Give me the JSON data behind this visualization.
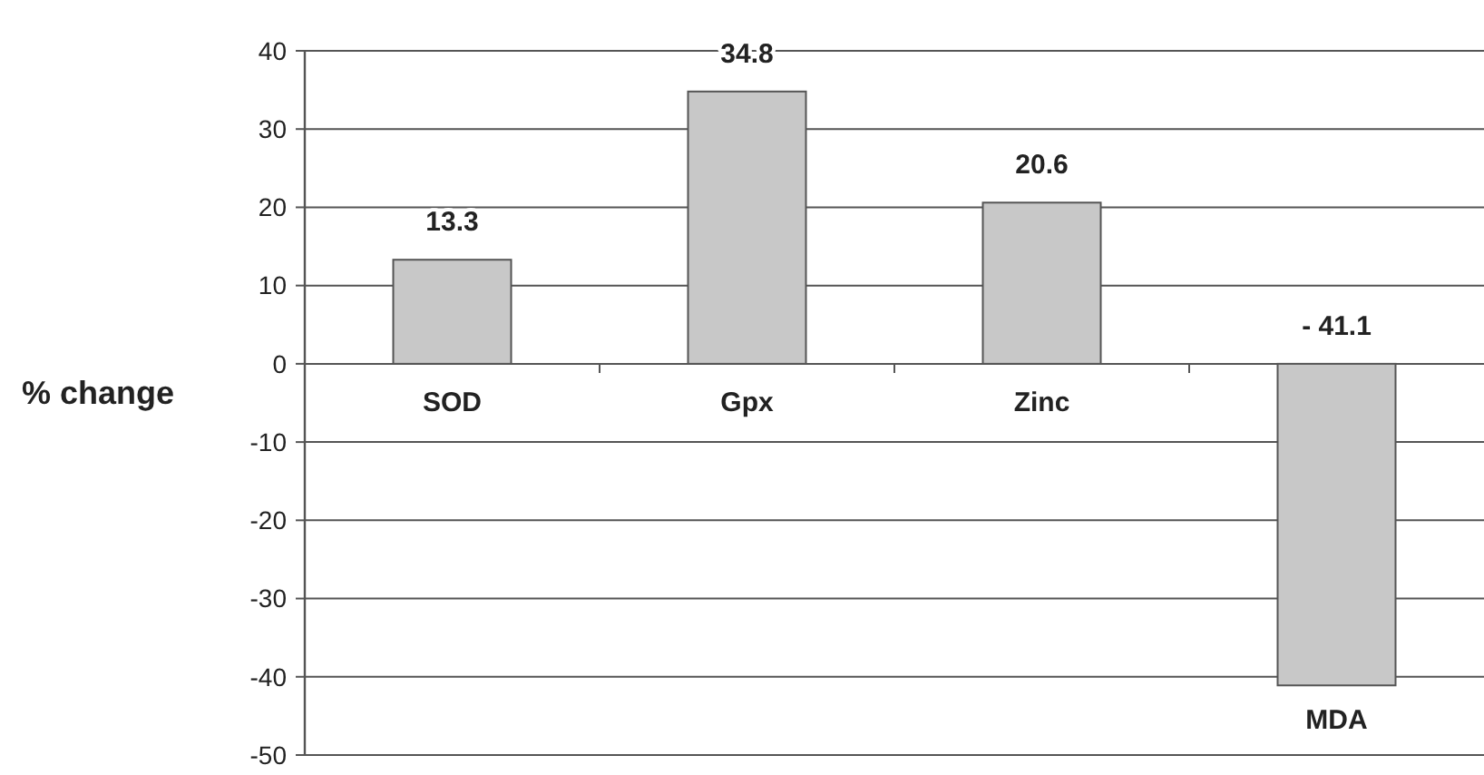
{
  "chart_data": {
    "type": "bar",
    "ylabel": "% change",
    "categories": [
      "SOD",
      "Gpx",
      "Zinc",
      "MDA"
    ],
    "values": [
      13.3,
      34.8,
      20.6,
      -41.1
    ],
    "color": "#c8c8c8",
    "value_labels": [
      "13.3",
      "34.8",
      "20.6",
      "- 41.1"
    ],
    "ylim": [
      -50,
      40
    ],
    "yticks": [
      -50,
      -40,
      -30,
      -20,
      -10,
      0,
      10,
      20,
      30,
      40
    ],
    "grid": "y"
  }
}
